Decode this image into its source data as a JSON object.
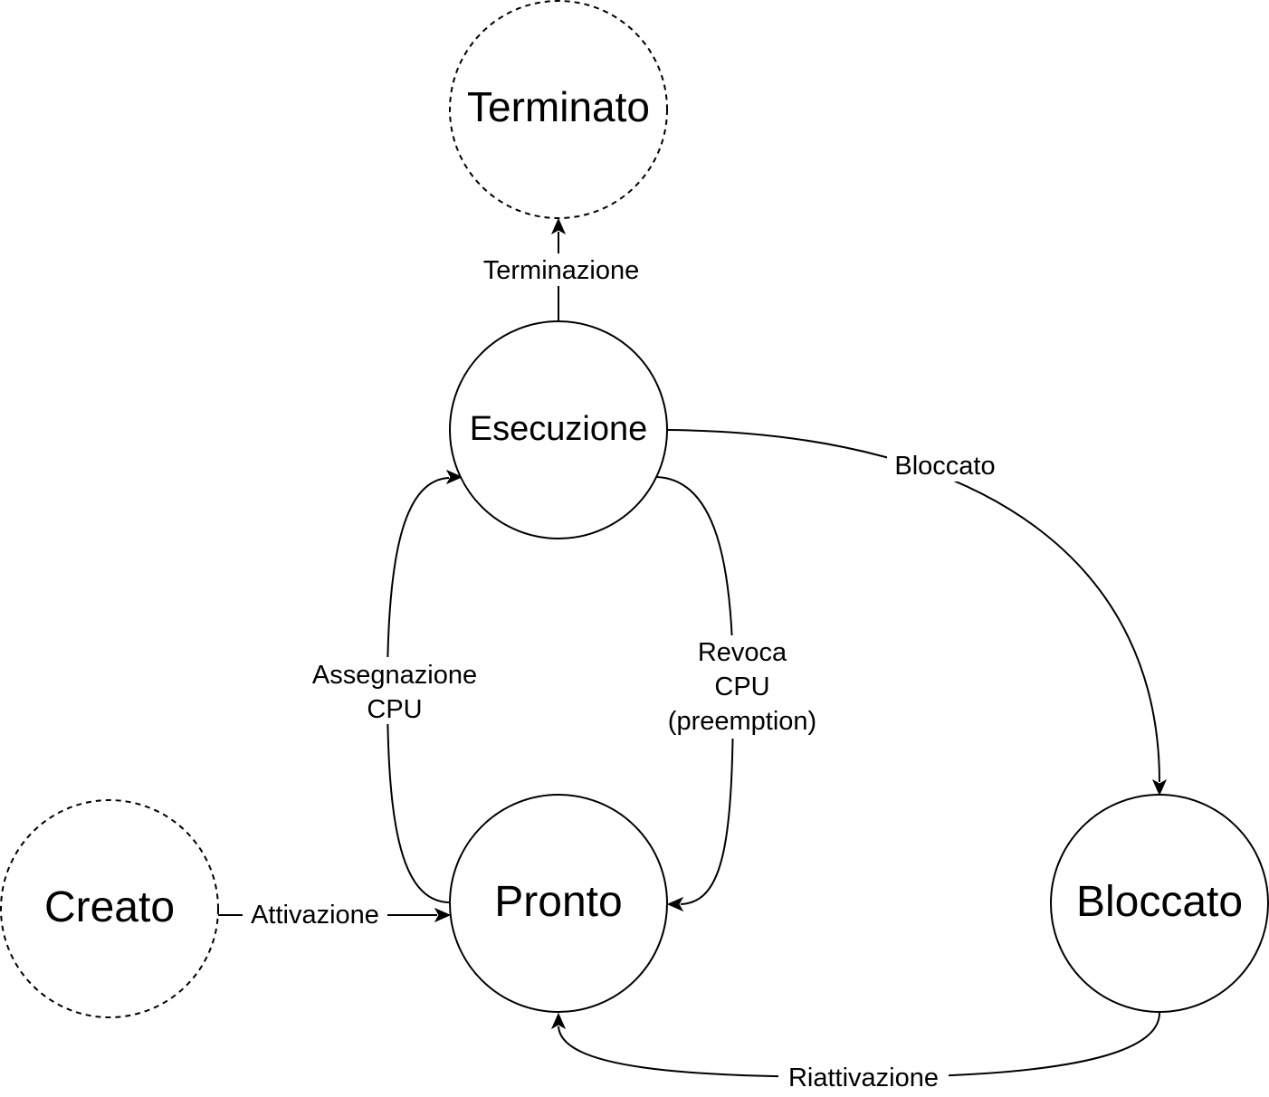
{
  "states": {
    "terminato": {
      "label": "Terminato",
      "style": "dashed"
    },
    "esecuzione": {
      "label": "Esecuzione",
      "style": "solid"
    },
    "pronto": {
      "label": "Pronto",
      "style": "solid"
    },
    "bloccato": {
      "label": "Bloccato",
      "style": "solid"
    },
    "creato": {
      "label": "Creato",
      "style": "dashed"
    }
  },
  "transitions": {
    "terminazione": {
      "label": "Terminazione",
      "from": "Esecuzione",
      "to": "Terminato"
    },
    "bloccato": {
      "label": "Bloccato",
      "from": "Esecuzione",
      "to": "Bloccato"
    },
    "assegnazione_cpu": {
      "lines": [
        "Assegnazione",
        "CPU"
      ],
      "from": "Pronto",
      "to": "Esecuzione"
    },
    "revoca_cpu": {
      "lines": [
        "Revoca",
        "CPU",
        "(preemption)"
      ],
      "from": "Esecuzione",
      "to": "Pronto"
    },
    "attivazione": {
      "label": "Attivazione",
      "from": "Creato",
      "to": "Pronto"
    },
    "riattivazione": {
      "label": "Riattivazione",
      "from": "Bloccato",
      "to": "Pronto"
    }
  },
  "colors": {
    "stroke": "#000000",
    "fill": "#ffffff",
    "text": "#000000"
  }
}
